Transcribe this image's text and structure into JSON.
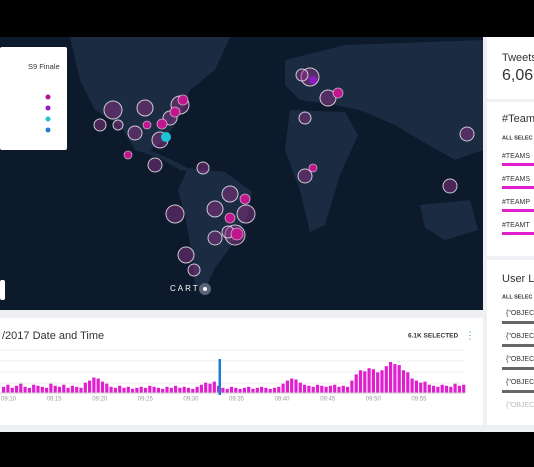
{
  "map": {
    "legend_title": "S9 Finale",
    "attribution": "CARTO"
  },
  "timeline": {
    "title": "/2017 Date and Time",
    "selected": "6.1K SELECTED",
    "menu": "⋮",
    "x_labels": [
      "09:10",
      "09:15",
      "09:20",
      "09:25",
      "09:30",
      "09:35",
      "09:40",
      "09:45",
      "09:50",
      "09:55"
    ],
    "histogram": {
      "type": "bar",
      "color": "#e01fcf",
      "values": [
        6,
        8,
        5,
        7,
        9,
        6,
        5,
        8,
        7,
        6,
        5,
        9,
        7,
        6,
        8,
        5,
        7,
        6,
        5,
        10,
        12,
        15,
        14,
        11,
        9,
        6,
        5,
        7,
        5,
        6,
        4,
        5,
        6,
        5,
        7,
        6,
        5,
        4,
        6,
        5,
        7,
        5,
        6,
        5,
        4,
        6,
        8,
        10,
        9,
        11,
        7,
        5,
        4,
        6,
        5,
        4,
        5,
        6,
        4,
        5,
        6,
        5,
        4,
        5,
        6,
        9,
        12,
        14,
        13,
        10,
        8,
        7,
        6,
        8,
        7,
        6,
        7,
        8,
        6,
        7,
        6,
        12,
        18,
        22,
        21,
        24,
        23,
        20,
        22,
        26,
        30,
        28,
        27,
        22,
        20,
        14,
        12,
        10,
        11,
        8,
        7,
        6,
        8,
        7,
        6,
        9,
        7,
        8
      ]
    }
  },
  "sidebar": {
    "tweets": {
      "title": "Tweets",
      "value": "6,06"
    },
    "hashtags": {
      "title": "#Team",
      "all_selected": "ALL SELEC",
      "items": [
        "#TEAMS",
        "#TEAMS",
        "#TEAMP",
        "#TEAMT"
      ]
    },
    "users": {
      "title": "User L",
      "all_selected": "ALL SELEC",
      "items": [
        "{\"OBJEC",
        "{\"OBJEC",
        "{\"OBJEC",
        "{\"OBJEC",
        "{\"OBJEC"
      ]
    }
  }
}
